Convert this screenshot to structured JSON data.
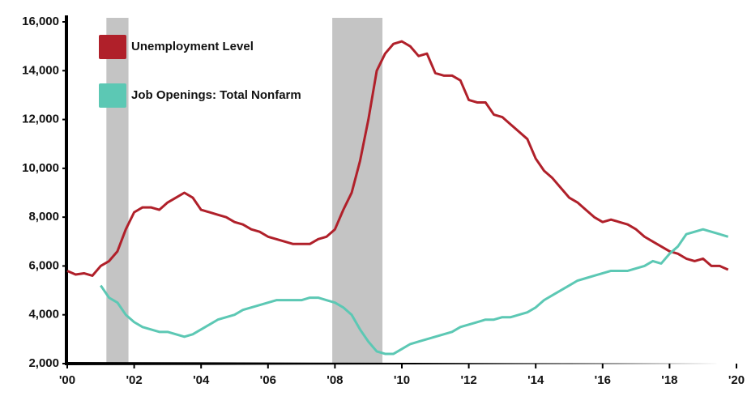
{
  "chart_data": {
    "type": "line",
    "x": [
      2000,
      2000.25,
      2000.5,
      2000.75,
      2001,
      2001.25,
      2001.5,
      2001.75,
      2002,
      2002.25,
      2002.5,
      2002.75,
      2003,
      2003.25,
      2003.5,
      2003.75,
      2004,
      2004.25,
      2004.5,
      2004.75,
      2005,
      2005.25,
      2005.5,
      2005.75,
      2006,
      2006.25,
      2006.5,
      2006.75,
      2007,
      2007.25,
      2007.5,
      2007.75,
      2008,
      2008.25,
      2008.5,
      2008.75,
      2009,
      2009.25,
      2009.5,
      2009.75,
      2010,
      2010.25,
      2010.5,
      2010.75,
      2011,
      2011.25,
      2011.5,
      2011.75,
      2012,
      2012.25,
      2012.5,
      2012.75,
      2013,
      2013.25,
      2013.5,
      2013.75,
      2014,
      2014.25,
      2014.5,
      2014.75,
      2015,
      2015.25,
      2015.5,
      2015.75,
      2016,
      2016.25,
      2016.5,
      2016.75,
      2017,
      2017.25,
      2017.5,
      2017.75,
      2018,
      2018.25,
      2018.5,
      2018.75,
      2019,
      2019.25,
      2019.5,
      2019.75
    ],
    "series": [
      {
        "name": "Unemployment Level",
        "color": "#b0202a",
        "values": [
          5800,
          5650,
          5700,
          5600,
          6000,
          6200,
          6600,
          7500,
          8200,
          8400,
          8400,
          8300,
          8600,
          8800,
          9000,
          8800,
          8300,
          8200,
          8100,
          8000,
          7800,
          7700,
          7500,
          7400,
          7200,
          7100,
          7000,
          6900,
          6900,
          6900,
          7100,
          7200,
          7500,
          8300,
          9000,
          10300,
          12000,
          14000,
          14700,
          15100,
          15200,
          15000,
          14600,
          14700,
          13900,
          13800,
          13800,
          13600,
          12800,
          12700,
          12700,
          12200,
          12100,
          11800,
          11500,
          11200,
          10400,
          9900,
          9600,
          9200,
          8800,
          8600,
          8300,
          8000,
          7800,
          7900,
          7800,
          7700,
          7500,
          7200,
          7000,
          6800,
          6600,
          6500,
          6300,
          6200,
          6300,
          6000,
          6000,
          5850
        ]
      },
      {
        "name": "Job Openings: Total Nonfarm",
        "color": "#5cc8b4",
        "values": [
          null,
          null,
          null,
          null,
          5200,
          4700,
          4500,
          4000,
          3700,
          3500,
          3400,
          3300,
          3300,
          3200,
          3100,
          3200,
          3400,
          3600,
          3800,
          3900,
          4000,
          4200,
          4300,
          4400,
          4500,
          4600,
          4600,
          4600,
          4600,
          4700,
          4700,
          4600,
          4500,
          4300,
          4000,
          3400,
          2900,
          2500,
          2400,
          2400,
          2600,
          2800,
          2900,
          3000,
          3100,
          3200,
          3300,
          3500,
          3600,
          3700,
          3800,
          3800,
          3900,
          3900,
          4000,
          4100,
          4300,
          4600,
          4800,
          5000,
          5200,
          5400,
          5500,
          5600,
          5700,
          5800,
          5800,
          5800,
          5900,
          6000,
          6200,
          6100,
          6500,
          6800,
          7300,
          7400,
          7500,
          7400,
          7300,
          7200
        ]
      }
    ],
    "recessions": [
      [
        2001.17,
        2001.83
      ],
      [
        2007.92,
        2009.42
      ]
    ],
    "xlim": [
      2000,
      2020
    ],
    "xticks": [
      {
        "value": 2000,
        "label": "'00"
      },
      {
        "value": 2002,
        "label": "'02"
      },
      {
        "value": 2004,
        "label": "'04"
      },
      {
        "value": 2006,
        "label": "'06"
      },
      {
        "value": 2008,
        "label": "'08"
      },
      {
        "value": 2010,
        "label": "'10"
      },
      {
        "value": 2012,
        "label": "'12"
      },
      {
        "value": 2014,
        "label": "'14"
      },
      {
        "value": 2016,
        "label": "'16"
      },
      {
        "value": 2018,
        "label": "'18"
      },
      {
        "value": 2020,
        "label": "'20"
      }
    ],
    "ylim": [
      2000,
      16000
    ],
    "yticks": [
      {
        "value": 2000,
        "label": "2,000"
      },
      {
        "value": 4000,
        "label": "4,000"
      },
      {
        "value": 6000,
        "label": "6,000"
      },
      {
        "value": 8000,
        "label": "8,000"
      },
      {
        "value": 10000,
        "label": "10,000"
      },
      {
        "value": 12000,
        "label": "12,000"
      },
      {
        "value": 14000,
        "label": "14,000"
      },
      {
        "value": 16000,
        "label": "16,000"
      }
    ],
    "grid": false
  }
}
